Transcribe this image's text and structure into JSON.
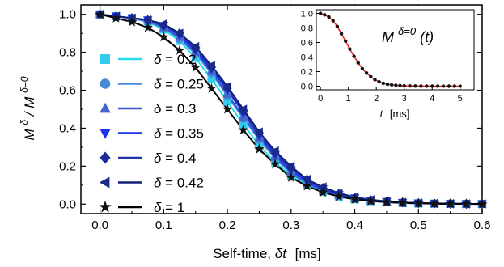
{
  "chart_data": [
    {
      "type": "scatter",
      "xlabel": "Self-time, δt [ms]",
      "xlabel_main": "Self-time,",
      "xlabel_symbol": "δt",
      "xlabel_unit": "[ms]",
      "ylabel": "M^δ / M^(δ=0)",
      "ylabel_base": "M",
      "ylabel_sup": "δ",
      "ylabel_slash": "/ M",
      "ylabel_sup2": "δ=0",
      "xlim": [
        -0.03,
        0.6
      ],
      "ylim": [
        -0.05,
        1.05
      ],
      "xticks": [
        0.0,
        0.1,
        0.2,
        0.3,
        0.4,
        0.5,
        0.6
      ],
      "xtick_labels": [
        "0.0",
        "0.1",
        "0.2",
        "0.3",
        "0.4",
        "0.5",
        "0.6"
      ],
      "yticks": [
        0.0,
        0.2,
        0.4,
        0.6,
        0.8,
        1.0
      ],
      "ytick_labels": [
        "0.0",
        "0.2",
        "0.4",
        "0.6",
        "0.8",
        "1.0"
      ],
      "grid": false,
      "legend_position": "left",
      "x": [
        0.0,
        0.025,
        0.05,
        0.075,
        0.1,
        0.125,
        0.15,
        0.175,
        0.2,
        0.225,
        0.25,
        0.275,
        0.3,
        0.325,
        0.35,
        0.375,
        0.4,
        0.425,
        0.45,
        0.475,
        0.5,
        0.525,
        0.55,
        0.575,
        0.6
      ],
      "series": [
        {
          "name": "δ = 0.2",
          "marker": "square",
          "color": "#33ccee",
          "line_color": "#22ddee",
          "values": [
            1.0,
            0.99,
            0.98,
            0.96,
            0.92,
            0.86,
            0.77,
            0.66,
            0.54,
            0.42,
            0.31,
            0.22,
            0.15,
            0.1,
            0.065,
            0.04,
            0.025,
            0.016,
            0.01,
            0.006,
            0.004,
            0.003,
            0.002,
            0.001,
            0.001
          ]
        },
        {
          "name": "δ = 0.25",
          "marker": "circle",
          "color": "#4a8ad8",
          "line_color": "#4a8ad8",
          "values": [
            1.0,
            0.99,
            0.98,
            0.96,
            0.93,
            0.87,
            0.79,
            0.69,
            0.57,
            0.45,
            0.34,
            0.24,
            0.16,
            0.11,
            0.07,
            0.045,
            0.028,
            0.018,
            0.011,
            0.007,
            0.004,
            0.003,
            0.002,
            0.001,
            0.001
          ]
        },
        {
          "name": "δ = 0.3",
          "marker": "triangle-up",
          "color": "#4466cc",
          "line_color": "#3355cc",
          "values": [
            1.0,
            0.99,
            0.98,
            0.97,
            0.93,
            0.88,
            0.8,
            0.7,
            0.58,
            0.46,
            0.35,
            0.25,
            0.17,
            0.11,
            0.075,
            0.048,
            0.03,
            0.019,
            0.012,
            0.007,
            0.005,
            0.003,
            0.002,
            0.001,
            0.001
          ]
        },
        {
          "name": "δ = 0.35",
          "marker": "triangle-down",
          "color": "#1a33ee",
          "line_color": "#1a33ee",
          "values": [
            1.0,
            0.99,
            0.98,
            0.97,
            0.94,
            0.89,
            0.81,
            0.71,
            0.6,
            0.48,
            0.36,
            0.26,
            0.18,
            0.12,
            0.08,
            0.05,
            0.032,
            0.02,
            0.013,
            0.008,
            0.005,
            0.003,
            0.002,
            0.001,
            0.001
          ]
        },
        {
          "name": "δ = 0.4",
          "marker": "diamond",
          "color": "#1a2a99",
          "line_color": "#2233aa",
          "values": [
            1.0,
            0.99,
            0.98,
            0.97,
            0.94,
            0.9,
            0.82,
            0.72,
            0.61,
            0.49,
            0.37,
            0.27,
            0.19,
            0.13,
            0.085,
            0.055,
            0.035,
            0.022,
            0.014,
            0.009,
            0.005,
            0.003,
            0.002,
            0.001,
            0.001
          ]
        },
        {
          "name": "δ = 0.42",
          "marker": "triangle-left",
          "color": "#1a2a88",
          "line_color": "#111f77",
          "values": [
            1.0,
            0.99,
            0.98,
            0.97,
            0.95,
            0.9,
            0.83,
            0.73,
            0.62,
            0.5,
            0.38,
            0.28,
            0.2,
            0.13,
            0.09,
            0.058,
            0.037,
            0.023,
            0.015,
            0.009,
            0.006,
            0.004,
            0.002,
            0.001,
            0.001
          ]
        },
        {
          "name": "δ = 1",
          "marker": "star",
          "color": "#111111",
          "line_color": "#000000",
          "values": [
            1.0,
            0.98,
            0.96,
            0.93,
            0.88,
            0.81,
            0.72,
            0.61,
            0.5,
            0.39,
            0.29,
            0.21,
            0.14,
            0.095,
            0.062,
            0.04,
            0.025,
            0.016,
            0.01,
            0.006,
            0.004,
            0.002,
            0.001,
            0.001,
            0.0
          ]
        }
      ]
    },
    {
      "type": "scatter",
      "title": "M^(δ=0)(t)",
      "title_base": "M",
      "title_sup": "δ=0",
      "title_arg": "(t)",
      "xlabel": "t [ms]",
      "xlabel_symbol": "t",
      "xlabel_unit": "[ms]",
      "xlim": [
        -0.15,
        5.5
      ],
      "ylim": [
        -0.05,
        1.05
      ],
      "xticks": [
        0,
        1,
        2,
        3,
        4,
        5
      ],
      "xtick_labels": [
        "0",
        "1",
        "2",
        "3",
        "4",
        "5"
      ],
      "yticks": [
        0.0,
        0.2,
        0.4,
        0.6,
        0.8,
        1.0
      ],
      "ytick_labels": [
        "0.0",
        "0.2",
        "0.4",
        "0.6",
        "0.8",
        "1.0"
      ],
      "grid": false,
      "fit_color": "#ee2222",
      "point_color": "#111111",
      "x": [
        0,
        0.15,
        0.3,
        0.45,
        0.6,
        0.75,
        0.9,
        1.05,
        1.2,
        1.35,
        1.5,
        1.65,
        1.8,
        1.95,
        2.1,
        2.25,
        2.4,
        2.55,
        2.7,
        2.85,
        3.0,
        3.2,
        3.4,
        3.6,
        3.8,
        4.0,
        4.2,
        4.4,
        4.6,
        4.8,
        5.0
      ],
      "values": [
        1.0,
        0.98,
        0.95,
        0.9,
        0.82,
        0.72,
        0.62,
        0.51,
        0.41,
        0.32,
        0.24,
        0.18,
        0.13,
        0.09,
        0.06,
        0.04,
        0.027,
        0.018,
        0.012,
        0.008,
        0.005,
        0.003,
        0.002,
        0.001,
        0.001,
        0.0,
        0.0,
        0.0,
        0.0,
        0.0,
        0.0
      ]
    }
  ]
}
